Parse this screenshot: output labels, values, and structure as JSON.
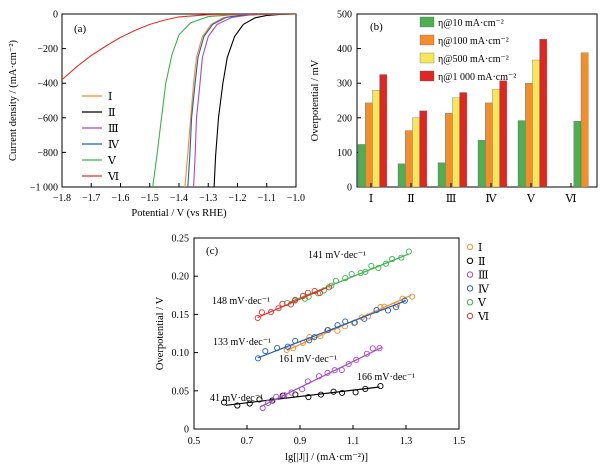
{
  "chart_data": [
    {
      "panel": "(a)",
      "type": "line",
      "xlabel": "Potential / V (vs RHE)",
      "ylabel": "Current density / (mA·cm⁻²)",
      "xlim": [
        -1.8,
        -1.0
      ],
      "ylim": [
        -1000,
        0
      ],
      "xticks": [
        "-1.8",
        "-1.7",
        "-1.6",
        "-1.5",
        "-1.4",
        "-1.3",
        "-1.2",
        "-1.1",
        "-1.0"
      ],
      "yticks": [
        "0",
        "-200",
        "-400",
        "-600",
        "-800",
        "-1 000"
      ],
      "legend_position": "left-middle",
      "series": [
        {
          "name": "Ⅰ",
          "color": "#f28e2b",
          "points": [
            [
              -1.38,
              -1000
            ],
            [
              -1.37,
              -810
            ],
            [
              -1.36,
              -600
            ],
            [
              -1.35,
              -400
            ],
            [
              -1.34,
              -250
            ],
            [
              -1.32,
              -130
            ],
            [
              -1.29,
              -60
            ],
            [
              -1.25,
              -22
            ],
            [
              -1.2,
              -8
            ],
            [
              -1.1,
              -1
            ],
            [
              -1.0,
              0
            ]
          ]
        },
        {
          "name": "Ⅱ",
          "color": "#000000",
          "points": [
            [
              -1.28,
              -1000
            ],
            [
              -1.275,
              -820
            ],
            [
              -1.265,
              -600
            ],
            [
              -1.25,
              -400
            ],
            [
              -1.235,
              -250
            ],
            [
              -1.21,
              -130
            ],
            [
              -1.18,
              -60
            ],
            [
              -1.14,
              -22
            ],
            [
              -1.1,
              -8
            ],
            [
              -1.05,
              -2
            ],
            [
              -1.0,
              0
            ]
          ]
        },
        {
          "name": "Ⅲ",
          "color": "#a64ac9",
          "points": [
            [
              -1.35,
              -1000
            ],
            [
              -1.345,
              -820
            ],
            [
              -1.34,
              -600
            ],
            [
              -1.33,
              -430
            ],
            [
              -1.32,
              -250
            ],
            [
              -1.3,
              -130
            ],
            [
              -1.27,
              -60
            ],
            [
              -1.22,
              -20
            ],
            [
              -1.16,
              -6
            ],
            [
              -1.1,
              -1
            ],
            [
              -1.0,
              0
            ]
          ]
        },
        {
          "name": "Ⅳ",
          "color": "#1f5fbf",
          "points": [
            [
              -1.37,
              -1000
            ],
            [
              -1.363,
              -820
            ],
            [
              -1.357,
              -600
            ],
            [
              -1.345,
              -400
            ],
            [
              -1.335,
              -250
            ],
            [
              -1.315,
              -130
            ],
            [
              -1.285,
              -60
            ],
            [
              -1.24,
              -20
            ],
            [
              -1.18,
              -6
            ],
            [
              -1.1,
              -1
            ],
            [
              -1.0,
              0
            ]
          ]
        },
        {
          "name": "Ⅴ",
          "color": "#3cb44b",
          "points": [
            [
              -1.49,
              -1000
            ],
            [
              -1.475,
              -810
            ],
            [
              -1.46,
              -600
            ],
            [
              -1.445,
              -400
            ],
            [
              -1.425,
              -240
            ],
            [
              -1.4,
              -120
            ],
            [
              -1.36,
              -50
            ],
            [
              -1.3,
              -15
            ],
            [
              -1.2,
              -3
            ],
            [
              -1.1,
              -1
            ],
            [
              -1.0,
              0
            ]
          ]
        },
        {
          "name": "Ⅵ",
          "color": "#e8302a",
          "points": [
            [
              -1.8,
              -380
            ],
            [
              -1.75,
              -305
            ],
            [
              -1.7,
              -240
            ],
            [
              -1.65,
              -185
            ],
            [
              -1.6,
              -135
            ],
            [
              -1.55,
              -95
            ],
            [
              -1.5,
              -60
            ],
            [
              -1.45,
              -35
            ],
            [
              -1.4,
              -17
            ],
            [
              -1.3,
              -4
            ],
            [
              -1.2,
              -1
            ],
            [
              -1.0,
              0
            ]
          ]
        }
      ]
    },
    {
      "panel": "(b)",
      "type": "bar",
      "ylabel": "Overpotential / mV",
      "ylim": [
        0,
        500
      ],
      "yticks": [
        "0",
        "100",
        "200",
        "300",
        "400",
        "500"
      ],
      "categories": [
        "Ⅰ",
        "Ⅱ",
        "Ⅲ",
        "Ⅳ",
        "Ⅴ",
        "Ⅵ"
      ],
      "legend_position": "top-left",
      "series": [
        {
          "name": "η@10 mA·cm⁻²",
          "color": "#4caf50",
          "values": [
            123,
            67,
            70,
            135,
            192,
            190
          ]
        },
        {
          "name": "η@100 mA·cm⁻²",
          "color": "#f28e2b",
          "values": [
            243,
            163,
            213,
            243,
            300,
            388
          ]
        },
        {
          "name": "η@500 mA·cm⁻²",
          "color": "#f5e65a",
          "values": [
            280,
            200,
            258,
            283,
            367,
            null
          ]
        },
        {
          "name": "η@1 000 mA·cm⁻²",
          "color": "#e02525",
          "values": [
            325,
            220,
            273,
            307,
            427,
            null
          ]
        }
      ]
    },
    {
      "panel": "(c)",
      "type": "scatter",
      "xlabel": "lg[|J|] / (mA·cm⁻²)]",
      "ylabel": "Overpotential / V",
      "xlim": [
        0.5,
        1.5
      ],
      "ylim": [
        0,
        0.25
      ],
      "xticks": [
        "0.5",
        "0.7",
        "0.9",
        "1.1",
        "1.3",
        "1.5"
      ],
      "yticks": [
        "0",
        "0.05",
        "0.10",
        "0.15",
        "0.20",
        "0.25"
      ],
      "legend_position": "right",
      "series": [
        {
          "name": "Ⅰ",
          "color": "#f28e2b",
          "slope_label": "161 mV·dec⁻¹",
          "fit": [
            [
              0.85,
              0.103
            ],
            [
              1.32,
              0.175
            ]
          ],
          "npoints": 16
        },
        {
          "name": "Ⅱ",
          "color": "#000000",
          "slope_label": "41 mV·dec⁻¹",
          "fit": [
            [
              0.62,
              0.031
            ],
            [
              1.2,
              0.055
            ]
          ],
          "npoints": 14
        },
        {
          "name": "Ⅲ",
          "color": "#a64ac9",
          "slope_label": "166 mV·dec⁻¹",
          "fit": [
            [
              0.75,
              0.029
            ],
            [
              1.21,
              0.107
            ]
          ],
          "npoints": 16
        },
        {
          "name": "Ⅳ",
          "color": "#1f5fbf",
          "slope_label": "133 mV·dec⁻¹",
          "fit": [
            [
              0.74,
              0.093
            ],
            [
              1.3,
              0.168
            ]
          ],
          "npoints": 16
        },
        {
          "name": "Ⅴ",
          "color": "#3cb44b",
          "slope_label": "141 mV·dec⁻¹",
          "fit": [
            [
              0.86,
              0.166
            ],
            [
              1.31,
              0.229
            ]
          ],
          "npoints": 18
        },
        {
          "name": "Ⅵ",
          "color": "#e8302a",
          "slope_label": "148 mV·dec⁻¹",
          "fit": [
            [
              0.74,
              0.146
            ],
            [
              1.0,
              0.185
            ]
          ],
          "npoints": 12
        }
      ]
    }
  ]
}
